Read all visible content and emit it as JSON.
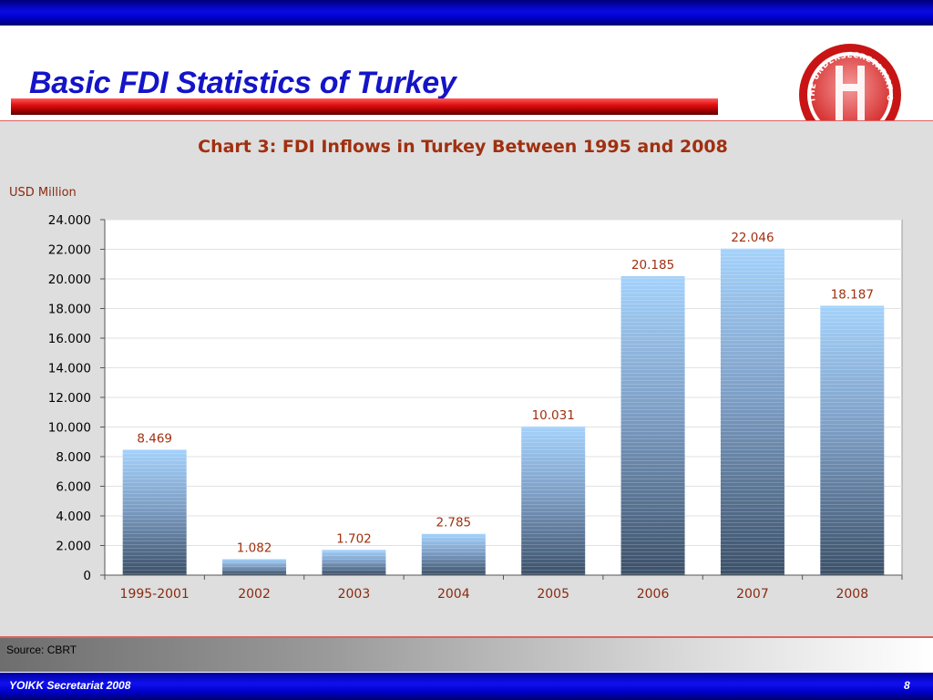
{
  "slide": {
    "title": "Basic FDI Statistics of Turkey",
    "logo_text": "THE UNDERSECRETARIAT OF TREASURY",
    "source": "Source: CBRT",
    "footer_left": "YOIKK Secretariat 2008",
    "page_number": "8"
  },
  "colors": {
    "title": "#1414c8",
    "chart_title": "#a03010",
    "bar_top": "#9fccf7",
    "bar_bottom": "#3f5670",
    "data_label": "#a03010",
    "band_blue": "#0000c8",
    "title_bar_red": "#e01010"
  },
  "chart_data": {
    "type": "bar",
    "title": "Chart 3: FDI Inflows in Turkey Between 1995 and 2008",
    "ylabel": "USD Million",
    "xlabel": "",
    "categories": [
      "1995-2001",
      "2002",
      "2003",
      "2004",
      "2005",
      "2006",
      "2007",
      "2008"
    ],
    "values": [
      8469,
      1082,
      1702,
      2785,
      10031,
      20185,
      22046,
      18187
    ],
    "data_labels": [
      "8.469",
      "1.082",
      "1.702",
      "2.785",
      "10.031",
      "20.185",
      "22.046",
      "18.187"
    ],
    "ylim": [
      0,
      24000
    ],
    "yticks": [
      0,
      2000,
      4000,
      6000,
      8000,
      10000,
      12000,
      14000,
      16000,
      18000,
      20000,
      22000,
      24000
    ],
    "ytick_labels": [
      "0",
      "2.000",
      "4.000",
      "6.000",
      "8.000",
      "10.000",
      "12.000",
      "14.000",
      "16.000",
      "18.000",
      "20.000",
      "22.000",
      "24.000"
    ],
    "grid": true,
    "legend": "none"
  }
}
